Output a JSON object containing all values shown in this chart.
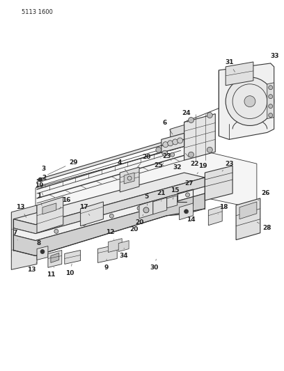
{
  "page_id": "5113 1600",
  "bg": "#ffffff",
  "lc": "#333333",
  "tc": "#222222",
  "fig_w": 4.08,
  "fig_h": 5.33,
  "dpi": 100
}
